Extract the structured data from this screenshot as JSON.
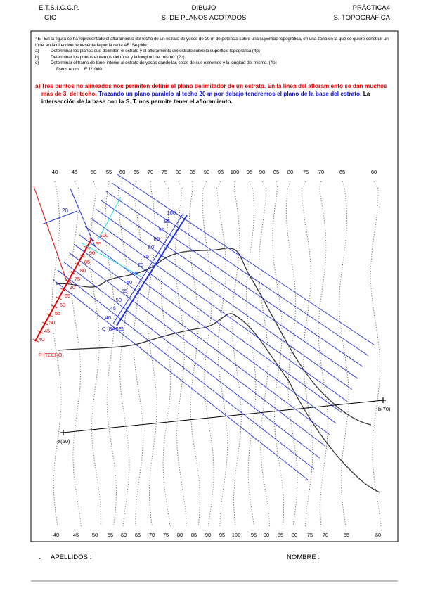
{
  "header": {
    "left": [
      "E.T.S.I.C.C.P.",
      "GIC"
    ],
    "center": [
      "DIBUJO",
      "S. DE PLANOS ACOTADOS"
    ],
    "right": [
      "PRÁCTICA4",
      "S. TOPOGRÁFICA"
    ]
  },
  "problem": {
    "statement": "4E.- En la figura se ha representado el afloramiento del techo de un estrato de yesos de 20 m de potencia sobre una superficie topográfica, en una zona en la que se quiere construir un túnel en la dirección representada por la recta AB. Se pide:",
    "items": [
      [
        "a)",
        "Determinar los planos que delimitan el estrato y el afloramiento del estrato sobre la superficie topográfica (4p)"
      ],
      [
        "b)",
        "Determinar los puntos extremos del túnel y la longitud del mismo. (2p)"
      ],
      [
        "c)",
        "Determinar el tramo de túnel interior al estrato de yesos dando las cotas de sus extremos y la longitud del mismo. (4p)"
      ]
    ],
    "data_note": "Datos en m",
    "scale": "E 1/1000"
  },
  "answer": {
    "marker": "a)",
    "red_text": "Tres puntos no alineados nos permiten definir el plano delimitador de un estrato. En la línea del afloramiento se dan muchos más de 3, del techo.",
    "blue_text": "Trazando un plano paralelo al techo 20 m por debajo tendremos el plano de la base del estrato.",
    "black_text": "La intersección de la base con la S. T. nos permite tener el afloramiento."
  },
  "drawing": {
    "contour_labels": [
      "40",
      "45",
      "50",
      "55",
      "60",
      "65",
      "70",
      "75",
      "80",
      "85",
      "90",
      "95",
      "100",
      "95",
      "90",
      "85",
      "80",
      "75",
      "70",
      "65",
      "60"
    ],
    "techo_scale": [
      "100",
      "95",
      "90",
      "85",
      "80",
      "75",
      "70",
      "65",
      "60",
      "55",
      "50",
      "45",
      "40"
    ],
    "base_scale": [
      "100",
      "95",
      "90",
      "85",
      "80",
      "75",
      "70",
      "65",
      "60",
      "55",
      "50",
      "45",
      "40"
    ],
    "thickness": "20",
    "techo_label": "P (TECHO)",
    "base_label": "Q (BASE)",
    "point_a": "a(50)",
    "point_b": "b(70)"
  },
  "footer": {
    "dot": ".",
    "surname": "APELLIDOS :",
    "name": "NOMBRE :"
  }
}
